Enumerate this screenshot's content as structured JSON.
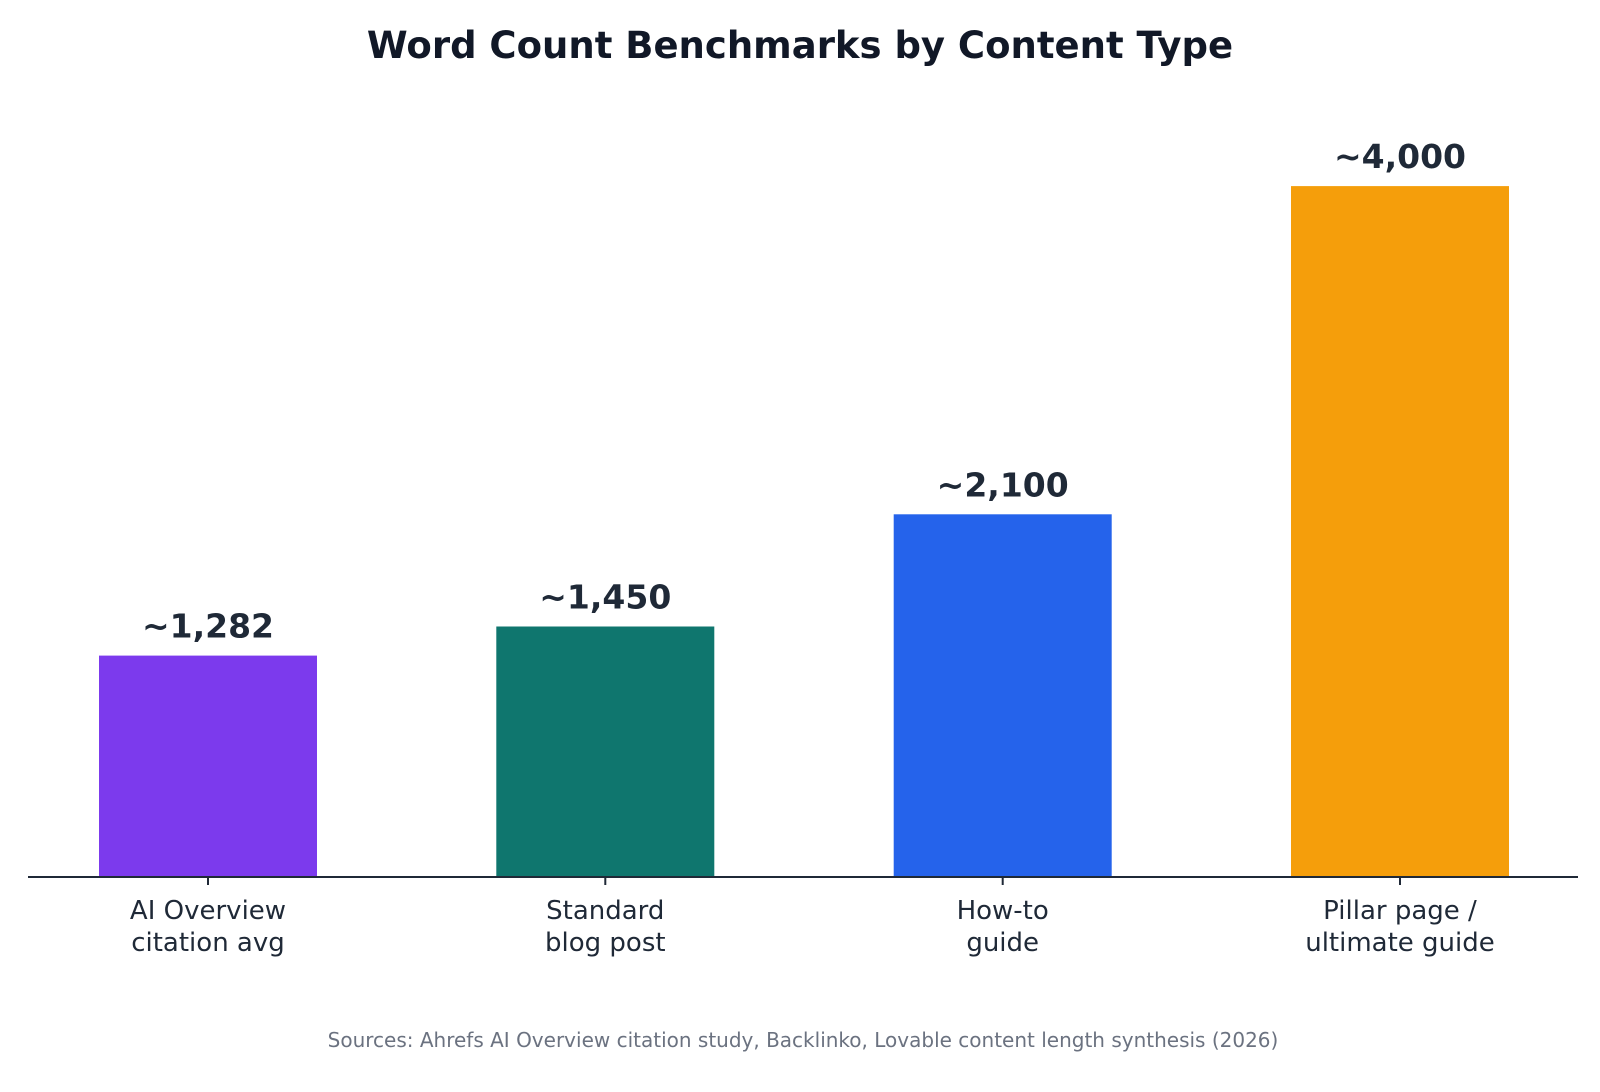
{
  "chart_data": {
    "type": "bar",
    "title": "Word Count Benchmarks by Content Type",
    "xlabel": "",
    "ylabel": "",
    "categories": [
      [
        "AI Overview",
        "citation avg"
      ],
      [
        "Standard",
        "blog post"
      ],
      [
        "How-to",
        "guide"
      ],
      [
        "Pillar page /",
        "ultimate guide"
      ]
    ],
    "values": [
      1282,
      1450,
      2100,
      4000
    ],
    "value_labels": [
      "~1,282",
      "~1,450",
      "~2,100",
      "~4,000"
    ],
    "colors": [
      "#7c3aed",
      "#0f766e",
      "#2563eb",
      "#f59e0b"
    ],
    "ylim": [
      0,
      4400
    ],
    "grid": false,
    "legend": "none"
  },
  "source_note": "Sources: Ahrefs AI Overview citation study, Backlinko, Lovable content length synthesis (2026)"
}
